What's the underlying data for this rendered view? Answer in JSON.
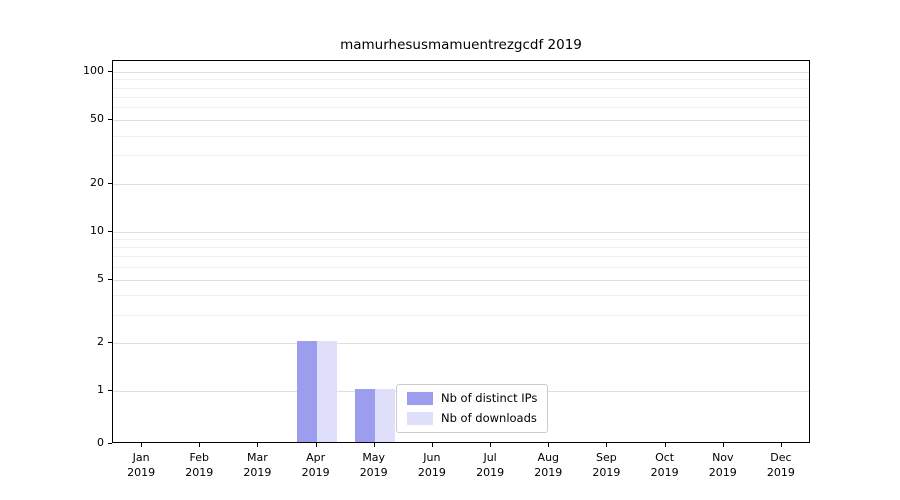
{
  "chart_data": {
    "type": "bar",
    "title": "mamurhesusmamuentrezgcdf 2019",
    "xlabel": "",
    "ylabel": "",
    "scale": "symlog",
    "categories": [
      "Jan",
      "Feb",
      "Mar",
      "Apr",
      "May",
      "Jun",
      "Jul",
      "Aug",
      "Sep",
      "Oct",
      "Nov",
      "Dec"
    ],
    "year_label": "2019",
    "yticks": [
      0,
      1,
      2,
      5,
      10,
      20,
      50,
      100
    ],
    "ylim": [
      0,
      100
    ],
    "grid": "horizontal",
    "legend_position": "bottom-center",
    "series": [
      {
        "name": "Nb of distinct IPs",
        "color": "#9d9dee",
        "values": [
          0,
          0,
          0,
          2,
          1,
          0,
          0,
          0,
          0,
          0,
          0,
          0
        ]
      },
      {
        "name": "Nb of downloads",
        "color": "#dfdffc",
        "values": [
          0,
          0,
          0,
          2,
          1,
          0,
          0,
          0,
          0,
          0,
          0,
          0
        ]
      }
    ]
  }
}
